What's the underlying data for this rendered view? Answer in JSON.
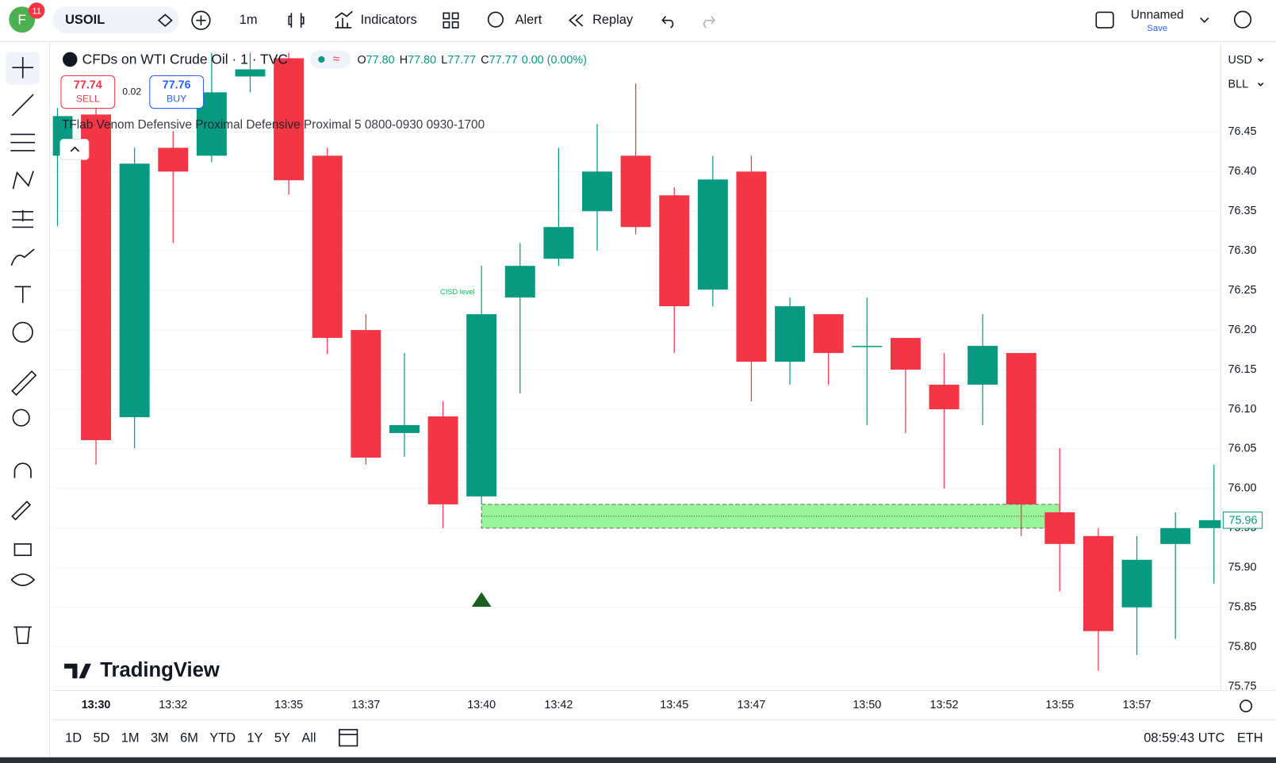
{
  "toolbar": {
    "avatar": "F",
    "badge": "11",
    "symbol": "USOIL",
    "interval": "1m",
    "indicators": "Indicators",
    "alert": "Alert",
    "replay": "Replay",
    "layout": "Unnamed",
    "save": "Save"
  },
  "legend": {
    "title": "CFDs on WTI Crude Oil · 1 · TVC",
    "ohlc": [
      {
        "label": "O",
        "value": "77.80"
      },
      {
        "label": "H",
        "value": "77.80"
      },
      {
        "label": "L",
        "value": "77.77"
      },
      {
        "label": "C",
        "value": "77.77"
      }
    ],
    "change": "0.00 (0.00%)",
    "sell": {
      "price": "77.74",
      "label": "SELL"
    },
    "spread": "0.02",
    "buy": {
      "price": "77.76",
      "label": "BUY"
    },
    "indicator": "TFlab Venom Defensive Proximal Defensive Proximal 5 0800-0930 0930-1700"
  },
  "price_scale": {
    "currency": "USD",
    "unit": "BLL"
  },
  "logo": "TradingView",
  "bottom_bar": {
    "ranges": [
      "1D",
      "5D",
      "1M",
      "3M",
      "6M",
      "YTD",
      "1Y",
      "5Y",
      "All"
    ],
    "clock": "08:59:43 UTC",
    "session": "ETH"
  },
  "chart_data": {
    "type": "candlestick",
    "categories": [
      null,
      "13:30",
      null,
      "13:32",
      null,
      null,
      "13:35",
      null,
      "13:37",
      null,
      null,
      "13:40",
      null,
      "13:42",
      null,
      null,
      "13:45",
      null,
      "13:47",
      null,
      null,
      "13:50",
      null,
      "13:52",
      null,
      null,
      "13:55",
      null,
      "13:57",
      null,
      null
    ],
    "open": [
      76.42,
      76.472,
      76.09,
      76.43,
      76.42,
      76.52,
      76.543,
      76.42,
      76.2,
      76.07,
      76.091,
      75.99,
      76.241,
      76.29,
      76.35,
      76.42,
      76.37,
      76.251,
      76.4,
      76.16,
      76.22,
      76.18,
      76.19,
      76.131,
      76.131,
      76.171,
      75.97,
      75.94,
      75.85,
      75.93,
      75.95
    ],
    "high": [
      76.48,
      76.49,
      76.43,
      76.451,
      76.55,
      76.55,
      76.55,
      76.43,
      76.22,
      76.171,
      76.11,
      76.281,
      76.31,
      76.43,
      76.46,
      76.511,
      76.38,
      76.42,
      76.42,
      76.241,
      76.22,
      76.241,
      76.19,
      76.171,
      76.22,
      76.171,
      76.051,
      75.95,
      75.94,
      75.97,
      76.03
    ],
    "low": [
      76.331,
      76.03,
      76.051,
      76.31,
      76.412,
      76.5,
      76.371,
      76.17,
      76.03,
      76.04,
      75.95,
      75.98,
      76.12,
      76.281,
      76.3,
      76.321,
      76.171,
      76.23,
      76.11,
      76.131,
      76.131,
      76.08,
      76.07,
      76.0,
      76.08,
      75.94,
      75.87,
      75.77,
      75.79,
      75.81,
      75.88
    ],
    "close": [
      76.47,
      76.061,
      76.41,
      76.4,
      76.5,
      76.529,
      76.389,
      76.19,
      76.039,
      76.08,
      75.98,
      76.22,
      76.281,
      76.33,
      76.4,
      76.33,
      76.23,
      76.39,
      76.16,
      76.23,
      76.171,
      76.18,
      76.15,
      76.1,
      76.18,
      75.98,
      75.93,
      75.82,
      75.91,
      75.95,
      75.96
    ],
    "up_color": "#089981",
    "down_color": "#f23645",
    "ylim": [
      75.745,
      76.56
    ],
    "yticks": [
      75.75,
      {
        "value": 75.8,
        "label": "75.80"
      },
      75.85,
      {
        "value": 75.9,
        "label": "75.90"
      },
      75.95,
      {
        "value": 76.0,
        "label": "76.00"
      },
      76.05,
      {
        "value": 76.1,
        "label": "76.10"
      },
      76.15,
      {
        "value": 76.2,
        "label": "76.20"
      },
      76.25,
      {
        "value": 76.3,
        "label": "76.30"
      },
      76.35,
      {
        "value": 76.4,
        "label": "76.40"
      },
      76.45
    ],
    "grid": true,
    "last_price": 75.96,
    "annotation": "CISD level",
    "zone": {
      "low": 75.95,
      "high": 75.98,
      "start": 11,
      "end": 26
    },
    "marker": {
      "index": 11,
      "value": 75.86
    }
  }
}
